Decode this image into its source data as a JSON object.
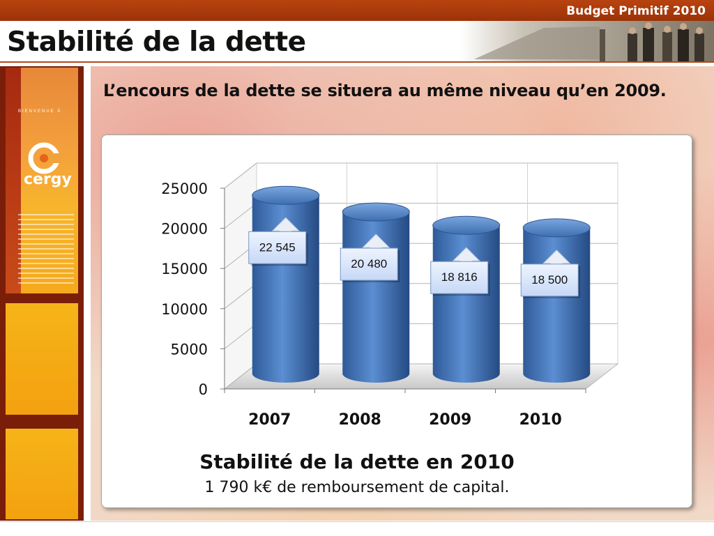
{
  "header": {
    "brand": "Budget Primitif 2010",
    "title": "Stabilité de la dette"
  },
  "sidebar": {
    "welcome": "BIENVENUE À",
    "logo_text": "cergy"
  },
  "subtitle": "L’encours de la dette se situera au même niveau qu’en 2009.",
  "caption": {
    "title": "Stabilité de la dette en 2010",
    "subtitle": "1 790 k€ de remboursement de capital."
  },
  "colors": {
    "header_bar": "#a63a0c",
    "cylinder": "#3f6fb0",
    "label_box": "#d7e4fa"
  },
  "chart_data": {
    "type": "bar",
    "style": "3d-cylinder",
    "categories": [
      "2007",
      "2008",
      "2009",
      "2010"
    ],
    "values": [
      22545,
      20480,
      18816,
      18500
    ],
    "data_labels": [
      "22 545",
      "20 480",
      "18 816",
      "18 500"
    ],
    "ylim": [
      0,
      25000
    ],
    "yticks": [
      "0",
      "5000",
      "10000",
      "15000",
      "20000",
      "25000"
    ],
    "title": "",
    "xlabel": "",
    "ylabel": "",
    "grid": true,
    "legend": "none"
  }
}
